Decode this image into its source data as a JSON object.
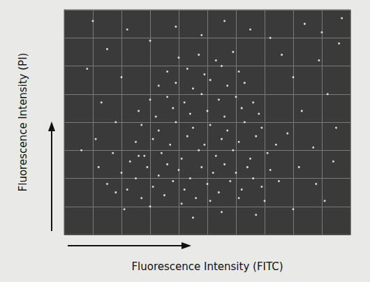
{
  "chart_data": {
    "type": "scatter",
    "x_label": "Fluorescence Intensity (FITC)",
    "y_label": "Fluorescence Intensity (PI)",
    "xlim": [
      0,
      10
    ],
    "ylim": [
      0,
      8
    ],
    "xticks": [
      0,
      1,
      2,
      3,
      4,
      5,
      6,
      7,
      8,
      9,
      10
    ],
    "yticks": [
      0,
      1,
      2,
      3,
      4,
      5,
      6,
      7,
      8
    ],
    "grid": true,
    "tick_labels": false,
    "color": "#ffffff",
    "marker": "circle",
    "x": [
      1.5,
      1.8,
      2.0,
      2.2,
      2.5,
      2.7,
      2.9,
      3.1,
      3.3,
      3.5,
      3.6,
      3.8,
      4.0,
      4.2,
      4.4,
      4.6,
      4.8,
      5.0,
      5.2,
      5.4,
      5.6,
      5.8,
      6.0,
      6.2,
      6.4,
      6.6,
      6.9,
      7.2,
      7.5,
      1.2,
      2.3,
      3.0,
      4.1,
      5.1,
      6.1,
      7.0,
      1.7,
      2.6,
      2.8,
      3.4,
      4.1,
      4.7,
      5.3,
      5.9,
      6.5,
      7.1,
      2.5,
      3.1,
      3.7,
      4.3,
      4.9,
      5.5,
      6.1,
      6.7,
      7.4,
      2.7,
      3.3,
      3.9,
      4.5,
      5.1,
      5.7,
      6.3,
      6.9,
      2.6,
      3.2,
      3.8,
      4.4,
      5.0,
      5.6,
      6.2,
      6.8,
      3.0,
      3.6,
      4.2,
      4.8,
      5.4,
      6.0,
      6.6,
      3.3,
      3.9,
      4.5,
      5.1,
      5.7,
      6.3,
      3.6,
      4.3,
      4.9,
      5.5,
      6.1,
      4.0,
      4.7,
      5.3,
      5.9,
      7.8,
      8.3,
      8.7,
      9.2,
      8.0,
      8.9,
      9.5,
      7.6,
      9.0,
      8.4,
      9.6,
      7.2,
      6.5,
      5.6,
      4.8,
      3.9,
      3.0,
      2.2,
      1.5,
      2.0,
      1.3,
      1.8,
      1.1,
      0.8,
      8.2,
      8.8,
      9.4,
      9.1,
      8.0,
      6.7,
      5.5,
      4.5,
      2.1,
      9.7,
      1.0,
      0.6
    ],
    "values": [
      1.8,
      1.5,
      2.2,
      1.6,
      2.0,
      1.3,
      2.4,
      1.7,
      2.1,
      1.4,
      2.5,
      1.9,
      2.3,
      1.6,
      2.0,
      1.3,
      2.4,
      1.8,
      2.2,
      1.5,
      2.5,
      1.9,
      2.2,
      1.6,
      2.4,
      2.0,
      1.7,
      2.3,
      1.9,
      2.4,
      2.6,
      1.0,
      1.1,
      1.2,
      1.3,
      1.2,
      2.9,
      2.8,
      2.8,
      2.9,
      2.7,
      3.0,
      2.8,
      3.0,
      2.7,
      2.9,
      3.3,
      3.4,
      3.2,
      3.5,
      3.2,
      3.4,
      3.3,
      3.5,
      3.2,
      3.9,
      3.7,
      4.0,
      3.8,
      3.9,
      3.7,
      4.0,
      3.8,
      4.4,
      4.2,
      4.5,
      4.3,
      4.4,
      4.2,
      4.5,
      4.3,
      4.8,
      4.9,
      4.7,
      5.0,
      4.8,
      4.9,
      4.7,
      5.3,
      5.4,
      5.2,
      5.5,
      5.3,
      5.4,
      5.8,
      5.9,
      5.7,
      6.0,
      5.8,
      6.3,
      6.4,
      6.2,
      6.5,
      3.6,
      4.4,
      3.1,
      5.0,
      5.6,
      6.2,
      3.8,
      6.4,
      7.2,
      7.5,
      6.8,
      7.0,
      7.3,
      7.6,
      7.1,
      7.4,
      6.9,
      7.3,
      6.6,
      5.6,
      4.7,
      4.0,
      3.4,
      5.9,
      2.4,
      1.8,
      2.6,
      1.2,
      0.9,
      0.7,
      0.8,
      0.6,
      0.9,
      7.7,
      7.6,
      3.0
    ]
  }
}
